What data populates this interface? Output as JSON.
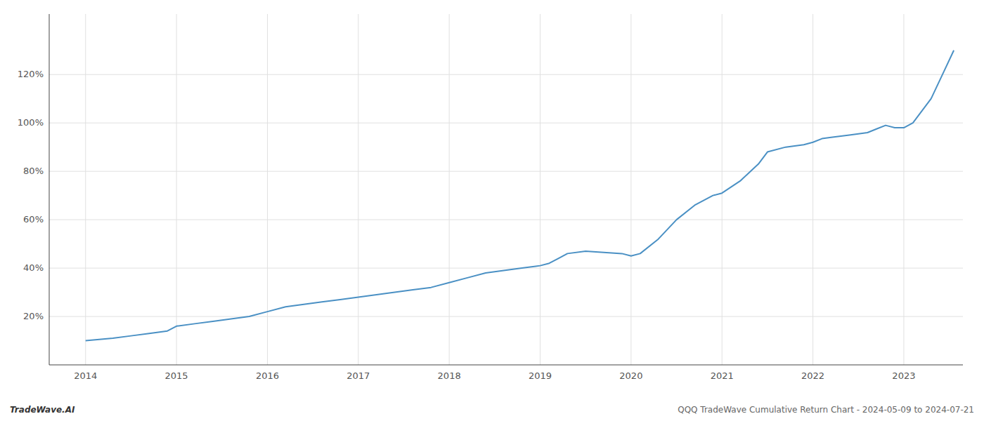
{
  "chart_data": {
    "type": "line",
    "x": [
      2014.0,
      2014.15,
      2014.3,
      2014.5,
      2014.7,
      2014.9,
      2015.0,
      2015.2,
      2015.4,
      2015.6,
      2015.8,
      2016.0,
      2016.2,
      2016.4,
      2016.6,
      2016.8,
      2017.0,
      2017.2,
      2017.4,
      2017.6,
      2017.8,
      2018.0,
      2018.2,
      2018.4,
      2018.6,
      2018.8,
      2019.0,
      2019.1,
      2019.2,
      2019.3,
      2019.5,
      2019.7,
      2019.9,
      2020.0,
      2020.1,
      2020.3,
      2020.5,
      2020.7,
      2020.9,
      2021.0,
      2021.2,
      2021.4,
      2021.5,
      2021.7,
      2021.9,
      2022.0,
      2022.1,
      2022.2,
      2022.4,
      2022.6,
      2022.7,
      2022.8,
      2022.9,
      2023.0,
      2023.1,
      2023.3,
      2023.45,
      2023.55
    ],
    "values": [
      10,
      10.5,
      11,
      12,
      13,
      14,
      16,
      17,
      18,
      19,
      20,
      22,
      24,
      25,
      26,
      27,
      28,
      29,
      30,
      31,
      32,
      34,
      36,
      38,
      39,
      40,
      41,
      42,
      44,
      46,
      47,
      46.5,
      46,
      45,
      46,
      52,
      60,
      66,
      70,
      71,
      76,
      83,
      88,
      90,
      91,
      92,
      93.5,
      94,
      95,
      96,
      97.5,
      99,
      98,
      98,
      100,
      110,
      122,
      130
    ],
    "color": "#4a90c4",
    "xlim": [
      2013.6,
      2023.65
    ],
    "xticks": [
      2014,
      2015,
      2016,
      2017,
      2018,
      2019,
      2020,
      2021,
      2022,
      2023
    ],
    "ylim": [
      0,
      145
    ],
    "yticks": [
      {
        "value": 20,
        "label": "20%"
      },
      {
        "value": 40,
        "label": "40%"
      },
      {
        "value": 60,
        "label": "60%"
      },
      {
        "value": 80,
        "label": "80%"
      },
      {
        "value": 100,
        "label": "100%"
      },
      {
        "value": 120,
        "label": "120%"
      }
    ],
    "grid": true,
    "annotations": [
      "TradeWave.AI",
      "QQQ TradeWave Cumulative Return Chart - 2024-05-09 to 2024-07-21"
    ]
  }
}
